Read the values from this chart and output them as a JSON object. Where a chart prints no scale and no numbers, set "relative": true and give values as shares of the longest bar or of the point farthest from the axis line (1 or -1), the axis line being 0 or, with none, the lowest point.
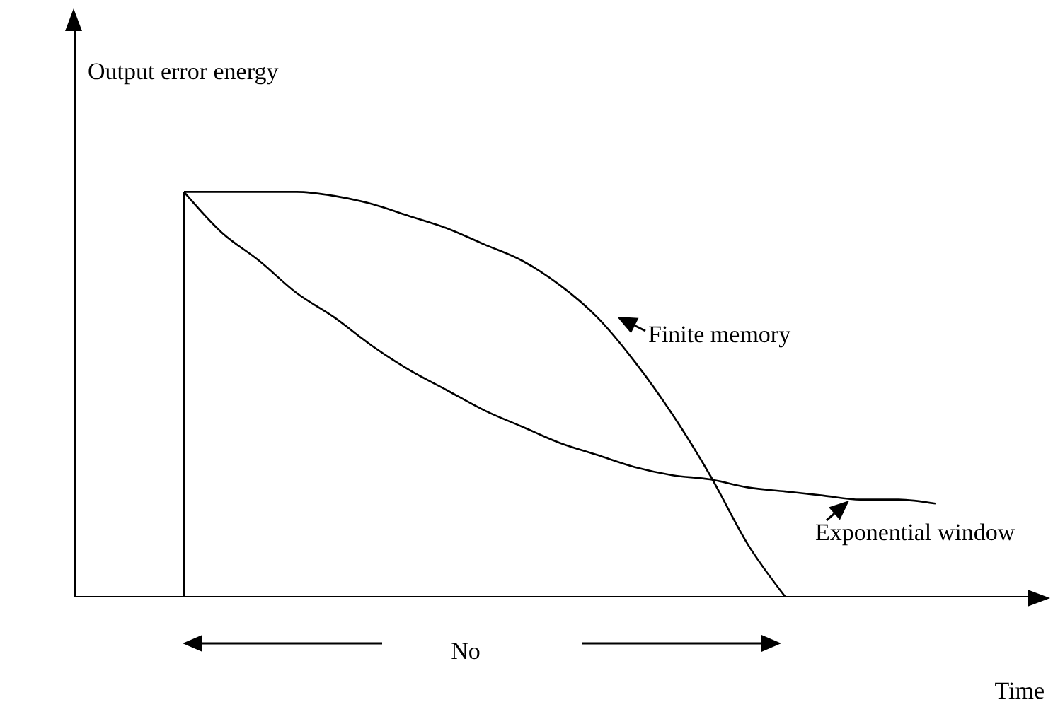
{
  "chart_data": {
    "type": "line",
    "relative": true,
    "ylabel": "Output error energy",
    "xlabel": "Time",
    "categories": [
      null,
      null,
      null,
      null,
      null,
      null,
      null,
      null,
      null,
      null,
      null,
      null,
      null,
      null,
      null,
      null,
      null,
      null,
      null,
      null,
      null
    ],
    "series": [
      {
        "name": "Finite memory",
        "color": "#000000",
        "values": [
          1.0,
          1.0,
          1.0,
          1.0,
          0.99,
          0.97,
          0.94,
          0.91,
          0.87,
          0.83,
          0.77,
          0.69,
          0.58,
          0.45,
          0.3,
          0.13,
          0,
          null,
          null,
          null,
          null
        ]
      },
      {
        "name": "Exponential window",
        "color": "#000000",
        "values": [
          1.0,
          0.9,
          0.83,
          0.75,
          0.69,
          0.62,
          0.56,
          0.51,
          0.46,
          0.42,
          0.38,
          0.35,
          0.32,
          0.3,
          0.29,
          0.27,
          0.26,
          0.25,
          0.24,
          0.24,
          0.23
        ]
      }
    ],
    "annotations": [
      "No"
    ],
    "grid": false,
    "marker": "none",
    "line_style": "solid"
  }
}
